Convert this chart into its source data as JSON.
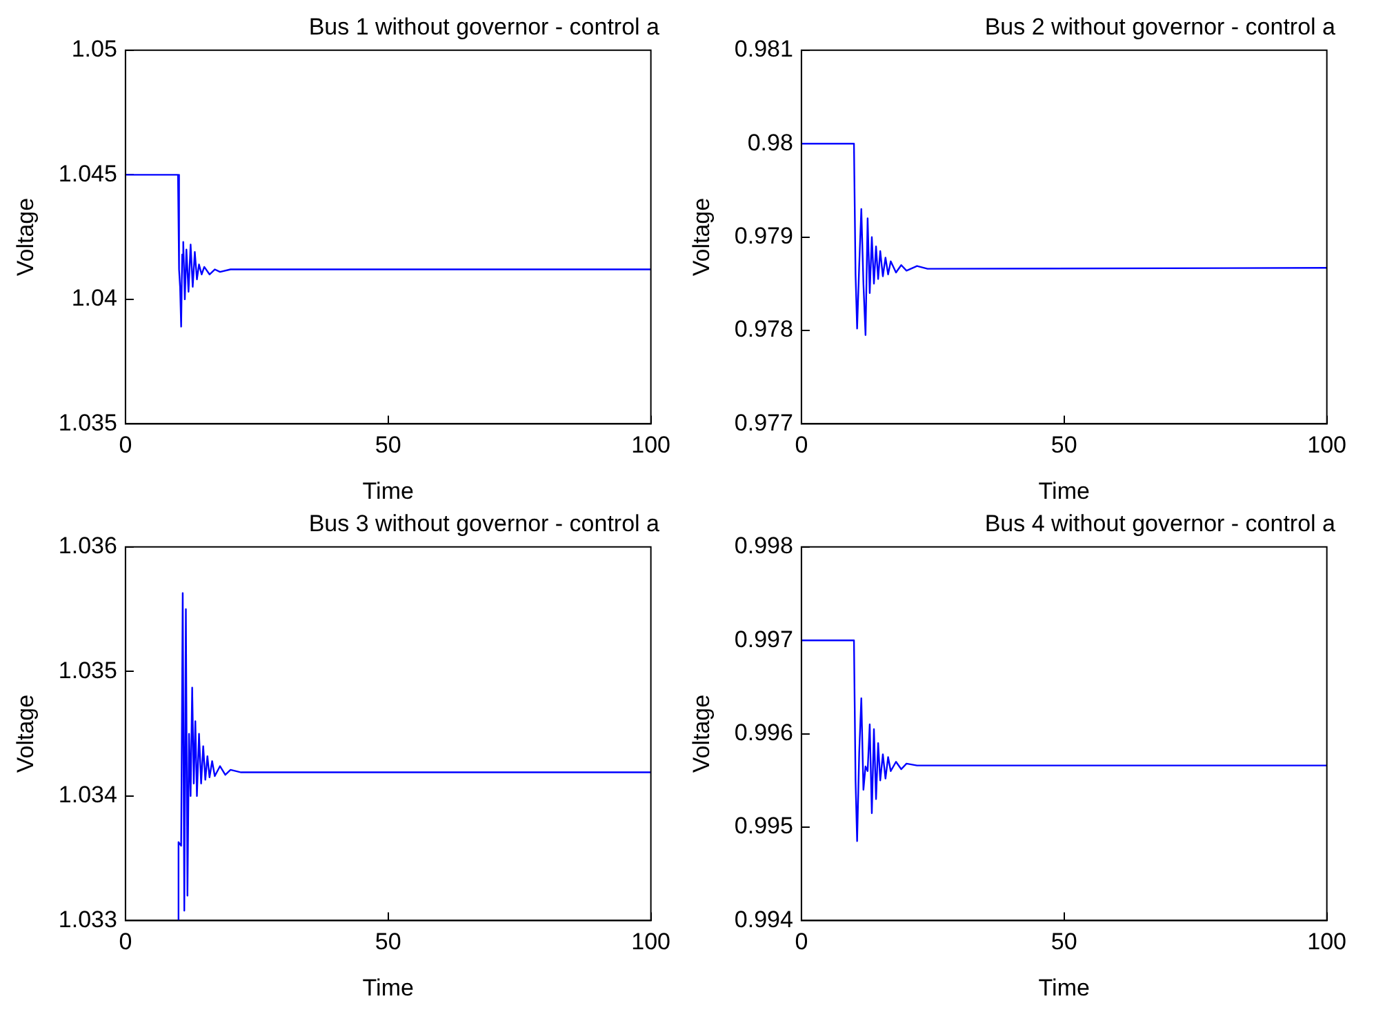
{
  "chart_data": [
    {
      "type": "line",
      "title": "Bus 1 without governor - control a",
      "xlabel": "Time",
      "ylabel": "Voltage",
      "xlim": [
        0,
        100
      ],
      "xticks": [
        0,
        50,
        100
      ],
      "ylim": [
        1.035,
        1.05
      ],
      "yticks": [
        {
          "value": 1.035,
          "label": "1.035"
        },
        {
          "value": 1.04,
          "label": "1.04"
        },
        {
          "value": 1.045,
          "label": "1.045"
        },
        {
          "value": 1.05,
          "label": "1.05"
        }
      ],
      "grid": false,
      "legend": false,
      "series": [
        {
          "color": "#0000ff",
          "x": [
            0,
            10,
            10.2,
            10.4,
            10.6,
            10.8,
            11,
            11.3,
            11.6,
            12,
            12.4,
            12.8,
            13.2,
            13.6,
            14,
            14.5,
            15,
            16,
            17,
            18,
            20,
            100
          ],
          "values": [
            1.045,
            1.045,
            1.0412,
            1.0405,
            1.0389,
            1.0418,
            1.0423,
            1.04,
            1.042,
            1.0403,
            1.0422,
            1.0405,
            1.0419,
            1.0408,
            1.0414,
            1.041,
            1.0413,
            1.041,
            1.0412,
            1.0411,
            1.0412,
            1.0412
          ]
        }
      ]
    },
    {
      "type": "line",
      "title": "Bus 2 without governor - control a",
      "xlabel": "Time",
      "ylabel": "Voltage",
      "xlim": [
        0,
        100
      ],
      "xticks": [
        0,
        50,
        100
      ],
      "ylim": [
        0.977,
        0.981
      ],
      "yticks": [
        {
          "value": 0.977,
          "label": "0.977"
        },
        {
          "value": 0.978,
          "label": "0.978"
        },
        {
          "value": 0.979,
          "label": "0.979"
        },
        {
          "value": 0.98,
          "label": "0.98"
        },
        {
          "value": 0.981,
          "label": "0.981"
        }
      ],
      "grid": false,
      "legend": false,
      "series": [
        {
          "color": "#0000ff",
          "x": [
            0,
            10,
            10.3,
            10.6,
            11,
            11.4,
            11.8,
            12.2,
            12.6,
            13,
            13.4,
            13.8,
            14.2,
            14.6,
            15,
            15.5,
            16,
            16.5,
            17,
            18,
            19,
            20,
            22,
            24,
            100
          ],
          "values": [
            0.98,
            0.98,
            0.9786,
            0.97802,
            0.9787,
            0.9793,
            0.9785,
            0.97795,
            0.9792,
            0.9784,
            0.979,
            0.9785,
            0.9789,
            0.97855,
            0.97885,
            0.97858,
            0.97878,
            0.9786,
            0.97874,
            0.97862,
            0.9787,
            0.97864,
            0.97869,
            0.97866,
            0.97867
          ]
        }
      ]
    },
    {
      "type": "line",
      "title": "Bus 3 without governor - control a",
      "xlabel": "Time",
      "ylabel": "Voltage",
      "xlim": [
        0,
        100
      ],
      "xticks": [
        0,
        50,
        100
      ],
      "ylim": [
        1.033,
        1.036
      ],
      "yticks": [
        {
          "value": 1.033,
          "label": "1.033"
        },
        {
          "value": 1.034,
          "label": "1.034"
        },
        {
          "value": 1.035,
          "label": "1.035"
        },
        {
          "value": 1.036,
          "label": "1.036"
        }
      ],
      "grid": false,
      "legend": false,
      "series": [
        {
          "color": "#0000ff",
          "x": [
            10,
            10.1,
            10.6,
            10.9,
            11.2,
            11.5,
            11.8,
            12.1,
            12.4,
            12.7,
            13,
            13.3,
            13.6,
            14,
            14.4,
            14.8,
            15.2,
            15.6,
            16,
            16.5,
            17,
            18,
            19,
            20,
            22,
            100
          ],
          "values": [
            1.033,
            1.03363,
            1.0336,
            1.03563,
            1.03308,
            1.0355,
            1.0332,
            1.0345,
            1.034,
            1.03487,
            1.0341,
            1.0346,
            1.034,
            1.0345,
            1.0341,
            1.0344,
            1.03413,
            1.03432,
            1.03415,
            1.03428,
            1.03416,
            1.03424,
            1.03417,
            1.03421,
            1.03419,
            1.03419
          ]
        }
      ]
    },
    {
      "type": "line",
      "title": "Bus 4 without governor - control a",
      "xlabel": "Time",
      "ylabel": "Voltage",
      "xlim": [
        0,
        100
      ],
      "xticks": [
        0,
        50,
        100
      ],
      "ylim": [
        0.994,
        0.998
      ],
      "yticks": [
        {
          "value": 0.994,
          "label": "0.994"
        },
        {
          "value": 0.995,
          "label": "0.995"
        },
        {
          "value": 0.996,
          "label": "0.996"
        },
        {
          "value": 0.997,
          "label": "0.997"
        },
        {
          "value": 0.998,
          "label": "0.998"
        }
      ],
      "grid": false,
      "legend": false,
      "series": [
        {
          "color": "#0000ff",
          "x": [
            0,
            10,
            10.3,
            10.6,
            11,
            11.4,
            11.8,
            12.2,
            12.6,
            13,
            13.4,
            13.8,
            14.2,
            14.6,
            15,
            15.5,
            16,
            16.5,
            17,
            18,
            19,
            20,
            22,
            100
          ],
          "values": [
            0.997,
            0.997,
            0.9955,
            0.99485,
            0.9958,
            0.99638,
            0.9954,
            0.99565,
            0.9956,
            0.9961,
            0.99515,
            0.99605,
            0.9953,
            0.9959,
            0.9955,
            0.99578,
            0.99552,
            0.99575,
            0.9956,
            0.9957,
            0.99562,
            0.99568,
            0.99566,
            0.99566
          ]
        }
      ]
    }
  ]
}
